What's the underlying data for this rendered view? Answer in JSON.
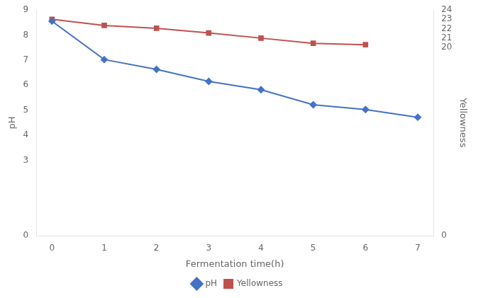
{
  "chart_data": {
    "type": "line",
    "x": [
      0,
      1,
      2,
      3,
      4,
      5,
      6,
      7
    ],
    "xlabel": "Fermentation time(h)",
    "ylabel": "pH",
    "y2label": "Yellowness",
    "xlim": [
      -0.3,
      7.3
    ],
    "xticks": [
      0,
      1,
      2,
      3,
      4,
      5,
      6,
      7
    ],
    "ylim": [
      0,
      9
    ],
    "yticks": [
      0,
      3,
      4,
      5,
      6,
      7,
      8,
      9
    ],
    "y2lim": [
      0,
      24
    ],
    "y2ticks": [
      0,
      20,
      21,
      22,
      23,
      24
    ],
    "grid": false,
    "legend": "bottom",
    "series": [
      {
        "name": "pH",
        "color": "#4472C4",
        "marker": "diamond",
        "values": [
          8.55,
          7.02,
          6.63,
          6.15,
          5.82,
          5.22,
          5.03,
          4.72
        ]
      },
      {
        "name": "Yellowness",
        "color": "#C0504D",
        "marker": "square",
        "axis": "y2",
        "values": [
          23.0,
          22.35,
          22.05,
          21.55,
          21.0,
          20.45,
          20.3,
          null
        ]
      }
    ]
  }
}
